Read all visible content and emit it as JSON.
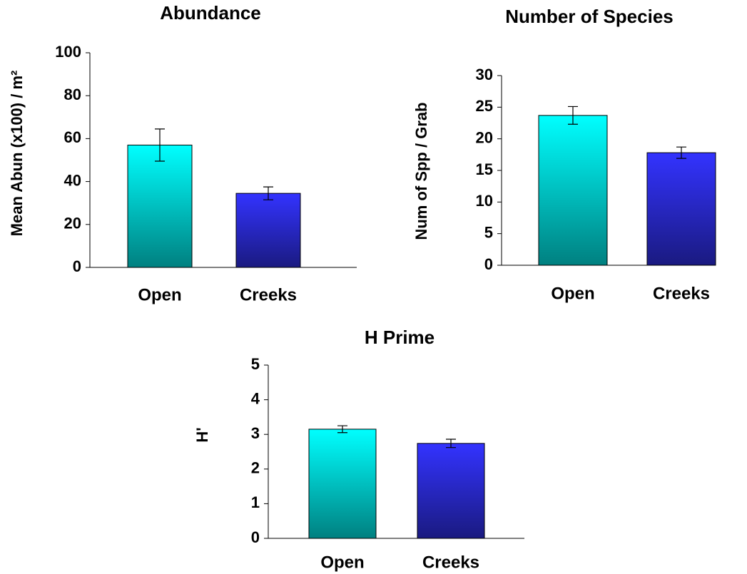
{
  "chart_data": [
    {
      "type": "bar",
      "title": "Abundance",
      "ylabel": "Mean Abun (x100) / m²",
      "categories": [
        "Open",
        "Creeks"
      ],
      "values": [
        57,
        34.5
      ],
      "errors": [
        7.5,
        3
      ],
      "colors": [
        "#00ffff",
        "#3333ff"
      ],
      "gradient_end_colors": [
        "#008080",
        "#1a1a80"
      ],
      "ylim": [
        0,
        100
      ],
      "yticks": [
        0,
        20,
        40,
        60,
        80,
        100
      ],
      "grid": false
    },
    {
      "type": "bar",
      "title": "Number of Species",
      "ylabel": "Num of Spp / Grab",
      "categories": [
        "Open",
        "Creeks"
      ],
      "values": [
        23.7,
        17.8
      ],
      "errors": [
        1.4,
        0.9
      ],
      "colors": [
        "#00ffff",
        "#3333ff"
      ],
      "gradient_end_colors": [
        "#008080",
        "#1a1a80"
      ],
      "ylim": [
        0,
        30
      ],
      "yticks": [
        0,
        5,
        10,
        15,
        20,
        25,
        30
      ],
      "grid": false
    },
    {
      "type": "bar",
      "title": "H Prime",
      "ylabel": "H'",
      "categories": [
        "Open",
        "Creeks"
      ],
      "values": [
        3.15,
        2.74
      ],
      "errors": [
        0.1,
        0.12
      ],
      "colors": [
        "#00ffff",
        "#3333ff"
      ],
      "gradient_end_colors": [
        "#008080",
        "#1a1a80"
      ],
      "ylim": [
        0,
        5
      ],
      "yticks": [
        0,
        1,
        2,
        3,
        4,
        5
      ],
      "grid": false
    }
  ]
}
